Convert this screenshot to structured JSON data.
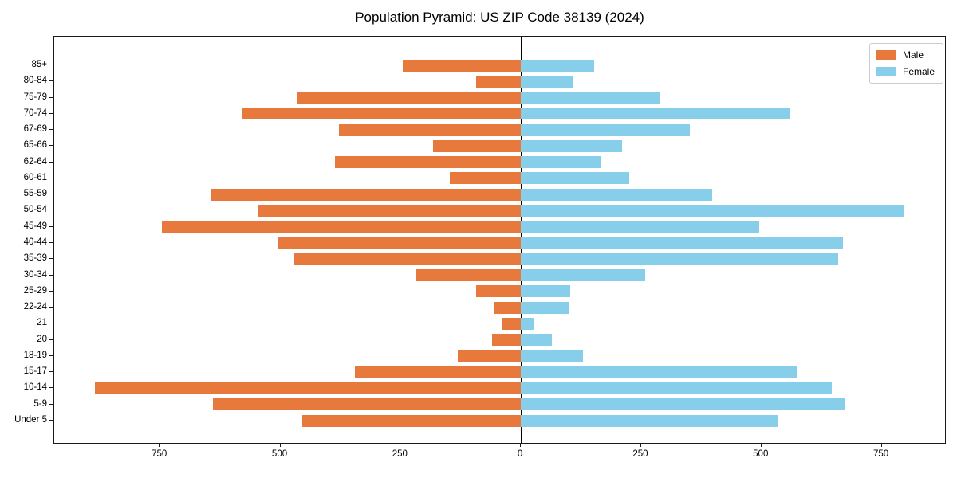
{
  "title": "Population Pyramid: US ZIP Code 38139 (2024)",
  "legend": {
    "male_label": "Male",
    "female_label": "Female"
  },
  "colors": {
    "male": "#E8793D",
    "female": "#87CEEB",
    "axis": "#1a1a1a",
    "zero_line": "#000000",
    "legend_border": "#cccccc",
    "background": "#ffffff"
  },
  "chart_data": {
    "type": "bar",
    "subtype": "population-pyramid",
    "orientation": "horizontal",
    "title": "Population Pyramid: US ZIP Code 38139 (2024)",
    "categories": [
      "85+",
      "80-84",
      "75-79",
      "70-74",
      "67-69",
      "65-66",
      "62-64",
      "60-61",
      "55-59",
      "50-54",
      "45-49",
      "40-44",
      "35-39",
      "30-34",
      "25-29",
      "22-24",
      "21",
      "20",
      "18-19",
      "15-17",
      "10-14",
      "5-9",
      "Under 5"
    ],
    "series": [
      {
        "name": "Male",
        "side": "left",
        "values": [
          246,
          93,
          466,
          578,
          379,
          182,
          387,
          147,
          645,
          545,
          747,
          505,
          471,
          218,
          93,
          56,
          38,
          60,
          131,
          345,
          886,
          640,
          455
        ]
      },
      {
        "name": "Female",
        "side": "right",
        "values": [
          152,
          109,
          290,
          558,
          352,
          210,
          165,
          226,
          398,
          797,
          495,
          669,
          660,
          258,
          102,
          99,
          26,
          64,
          129,
          574,
          646,
          673,
          536
        ]
      }
    ],
    "x_tick_values": [
      -750,
      -500,
      -250,
      0,
      250,
      500,
      750
    ],
    "x_tick_labels": [
      "750",
      "500",
      "250",
      "0",
      "250",
      "500",
      "750"
    ],
    "xlim": [
      -970,
      885
    ],
    "xlabel": "",
    "ylabel": "",
    "grid": false,
    "legend_position": "upper right"
  }
}
